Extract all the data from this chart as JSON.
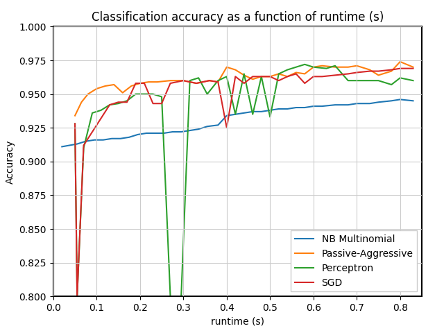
{
  "title": "Classification accuracy as a function of runtime (s)",
  "xlabel": "runtime (s)",
  "ylabel": "Accuracy",
  "xlim": [
    0.0,
    0.85
  ],
  "ylim": [
    0.8,
    1.0
  ],
  "yticks": [
    0.8,
    0.825,
    0.85,
    0.875,
    0.9,
    0.925,
    0.95,
    0.975,
    1.0
  ],
  "xticks": [
    0.0,
    0.1,
    0.2,
    0.3,
    0.4,
    0.5,
    0.6,
    0.7,
    0.8
  ],
  "series": {
    "NB Multinomial": {
      "color": "#1f77b4",
      "x": [
        0.02,
        0.055,
        0.075,
        0.095,
        0.115,
        0.135,
        0.155,
        0.175,
        0.195,
        0.215,
        0.235,
        0.255,
        0.275,
        0.295,
        0.315,
        0.335,
        0.355,
        0.38,
        0.4,
        0.42,
        0.44,
        0.46,
        0.48,
        0.5,
        0.52,
        0.54,
        0.56,
        0.58,
        0.6,
        0.62,
        0.65,
        0.68,
        0.7,
        0.73,
        0.75,
        0.78,
        0.8,
        0.83
      ],
      "y": [
        0.911,
        0.913,
        0.915,
        0.916,
        0.916,
        0.917,
        0.917,
        0.918,
        0.92,
        0.921,
        0.921,
        0.921,
        0.922,
        0.922,
        0.923,
        0.924,
        0.926,
        0.927,
        0.934,
        0.935,
        0.936,
        0.937,
        0.937,
        0.938,
        0.939,
        0.939,
        0.94,
        0.94,
        0.941,
        0.941,
        0.942,
        0.942,
        0.943,
        0.943,
        0.944,
        0.945,
        0.946,
        0.945
      ]
    },
    "Passive-Aggressive": {
      "color": "#ff7f0e",
      "x": [
        0.05,
        0.065,
        0.08,
        0.1,
        0.12,
        0.14,
        0.16,
        0.18,
        0.2,
        0.22,
        0.24,
        0.27,
        0.3,
        0.33,
        0.36,
        0.38,
        0.4,
        0.42,
        0.44,
        0.46,
        0.48,
        0.5,
        0.52,
        0.54,
        0.56,
        0.58,
        0.6,
        0.62,
        0.65,
        0.68,
        0.7,
        0.73,
        0.75,
        0.78,
        0.8,
        0.83
      ],
      "y": [
        0.934,
        0.944,
        0.95,
        0.954,
        0.956,
        0.957,
        0.951,
        0.956,
        0.958,
        0.959,
        0.959,
        0.96,
        0.96,
        0.958,
        0.96,
        0.959,
        0.97,
        0.968,
        0.964,
        0.961,
        0.963,
        0.963,
        0.965,
        0.963,
        0.966,
        0.965,
        0.97,
        0.971,
        0.97,
        0.97,
        0.971,
        0.968,
        0.964,
        0.967,
        0.974,
        0.97
      ]
    },
    "Perceptron": {
      "color": "#2ca02c",
      "x": [
        0.05,
        0.055,
        0.07,
        0.09,
        0.11,
        0.13,
        0.15,
        0.17,
        0.19,
        0.21,
        0.23,
        0.25,
        0.27,
        0.295,
        0.315,
        0.335,
        0.355,
        0.38,
        0.4,
        0.42,
        0.44,
        0.46,
        0.48,
        0.5,
        0.52,
        0.54,
        0.56,
        0.58,
        0.6,
        0.63,
        0.65,
        0.68,
        0.7,
        0.73,
        0.75,
        0.78,
        0.8,
        0.83
      ],
      "y": [
        0.928,
        0.8,
        0.91,
        0.936,
        0.938,
        0.942,
        0.943,
        0.945,
        0.95,
        0.95,
        0.95,
        0.948,
        0.8,
        0.8,
        0.96,
        0.962,
        0.95,
        0.96,
        0.963,
        0.935,
        0.965,
        0.935,
        0.963,
        0.933,
        0.965,
        0.968,
        0.97,
        0.972,
        0.97,
        0.969,
        0.971,
        0.96,
        0.96,
        0.96,
        0.96,
        0.957,
        0.962,
        0.96
      ]
    },
    "SGD": {
      "color": "#d62728",
      "x": [
        0.05,
        0.055,
        0.07,
        0.09,
        0.11,
        0.13,
        0.15,
        0.17,
        0.19,
        0.21,
        0.23,
        0.25,
        0.27,
        0.3,
        0.33,
        0.36,
        0.38,
        0.4,
        0.42,
        0.44,
        0.46,
        0.48,
        0.5,
        0.52,
        0.54,
        0.56,
        0.58,
        0.6,
        0.62,
        0.65,
        0.68,
        0.7,
        0.73,
        0.75,
        0.78,
        0.8,
        0.83
      ],
      "y": [
        0.928,
        0.8,
        0.912,
        0.922,
        0.932,
        0.942,
        0.944,
        0.944,
        0.958,
        0.958,
        0.943,
        0.943,
        0.958,
        0.96,
        0.958,
        0.96,
        0.959,
        0.925,
        0.963,
        0.958,
        0.963,
        0.963,
        0.963,
        0.96,
        0.963,
        0.965,
        0.958,
        0.963,
        0.963,
        0.964,
        0.965,
        0.966,
        0.967,
        0.967,
        0.968,
        0.969,
        0.969
      ]
    }
  },
  "legend_loc": "lower right",
  "grid": true,
  "linewidth": 1.5
}
